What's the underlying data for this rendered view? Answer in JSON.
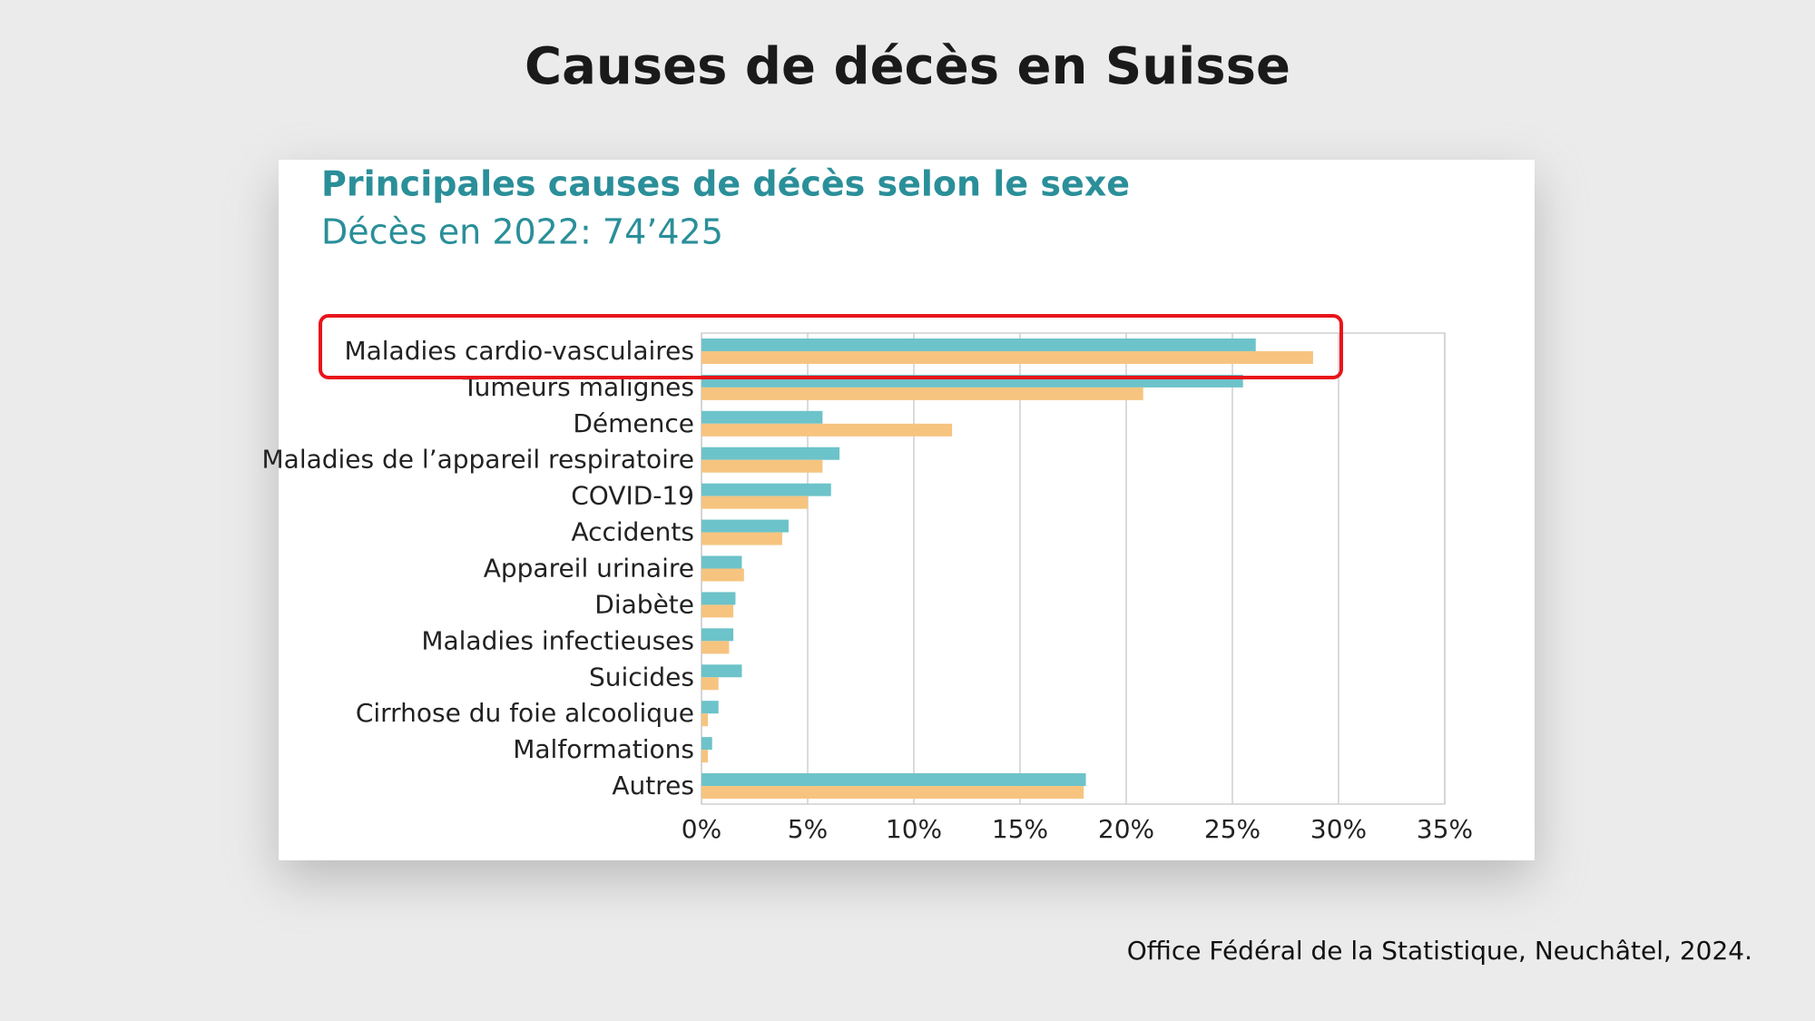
{
  "header": {
    "title": "Causes de décès en Suisse"
  },
  "chart_data": {
    "type": "bar",
    "orientation": "horizontal",
    "title": "Principales causes de décès selon le sexe",
    "subtitle": "Décès en 2022: 74’425",
    "categories": [
      "Maladies cardio-vasculaires",
      "Tumeurs malignes",
      "Démence",
      "Maladies de l’appareil respiratoire",
      "COVID-19",
      "Accidents",
      "Appareil urinaire",
      "Diabète",
      "Maladies infectieuses",
      "Suicides",
      "Cirrhose du foie alcoolique",
      "Malformations",
      "Autres"
    ],
    "series": [
      {
        "color": "#6cc3c9",
        "values": [
          26.1,
          25.5,
          5.7,
          6.5,
          6.1,
          4.1,
          1.9,
          1.6,
          1.5,
          1.9,
          0.8,
          0.5,
          18.1
        ]
      },
      {
        "color": "#f6c47f",
        "values": [
          28.8,
          20.8,
          11.8,
          5.7,
          5.0,
          3.8,
          2.0,
          1.5,
          1.3,
          0.8,
          0.3,
          0.3,
          18.0
        ]
      }
    ],
    "xlim": [
      0,
      35
    ],
    "xticks": [
      {
        "value": 0,
        "label": "0%"
      },
      {
        "value": 5,
        "label": "5%"
      },
      {
        "value": 10,
        "label": "10%"
      },
      {
        "value": 15,
        "label": "15%"
      },
      {
        "value": 20,
        "label": "20%"
      },
      {
        "value": 25,
        "label": "25%"
      },
      {
        "value": 30,
        "label": "30%"
      },
      {
        "value": 35,
        "label": "35%"
      }
    ],
    "grid": true
  },
  "footer": {
    "source": "Office Fédéral de la Statistique, Neuchâtel, 2024."
  }
}
